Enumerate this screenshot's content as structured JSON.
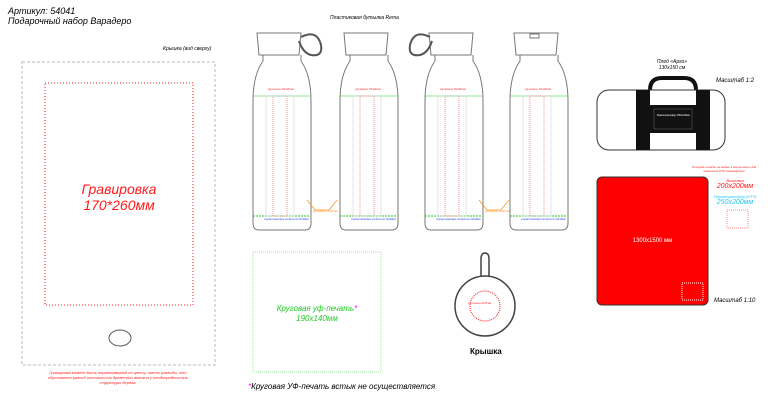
{
  "header": {
    "article": "Артикул: 54041",
    "product": "Подарочный набор Варадеро"
  },
  "lid_top": {
    "caption": "Крышка (вид сверху)",
    "engraving_title": "Гравировка",
    "engraving_size": "170*260мм",
    "note": "Гравировка может быть неравномерной по цвету, иметь разводы, что обусловлено разной плотностью древесных волокон у неоднородностью структуры дерева."
  },
  "bottles": {
    "title": "Пластиковая бутылка Rema",
    "print_top": "уф-печать 70x140 мм",
    "print_bottom": "термотрансфер на бутыли 20x40мм",
    "print_side": "уф-печать 10x40 мм"
  },
  "wrap": {
    "title": "Круговая уф-печать",
    "asterisk": "*",
    "size": "190x140мм",
    "footnote_mark": "*",
    "footnote": "Круговая УФ-печать встык не осуществляется"
  },
  "lid_round": {
    "caption": "Крышка",
    "print": "уф-печать Ø 25 мм"
  },
  "blanket": {
    "title": "Плед «Арго»",
    "size": "130x150 см",
    "scale_roll": "Масштаб 1:2",
    "patch": "Термотрансфер 150x100мм",
    "dimensions": "1300x1500 мм",
    "scale_flat": "Масштаб 1:10",
    "note": "Площадь печати не менее 1 мм на ворсе для нанесения DTF-термофлора",
    "embroidery_label": "Вышивка",
    "embroidery_size": "200x200мм",
    "dtf_label": "Термотрансфер (DTF)",
    "dtf_size": "250x200мм"
  },
  "colors": {
    "engraving": "#ff1a1a",
    "uv": "#22cc22",
    "dtf": "#1fc8f0",
    "blanket": "#ff0000",
    "orange": "#ff8c1a",
    "blue": "#2244ee"
  }
}
